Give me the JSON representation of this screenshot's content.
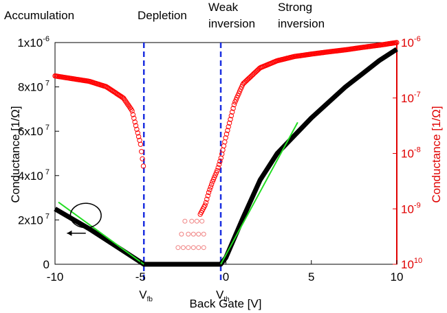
{
  "chart_data": {
    "type": "scatter",
    "regimes": [
      "Accumulation",
      "Depletion",
      "Weak inversion",
      "Strong inversion"
    ],
    "xlabel": "Back Gate [V]",
    "ylabel_left": "Conductance [1/Ω]",
    "ylabel_right": "Conductance [1/Ω]",
    "xlim": [
      -10,
      10
    ],
    "ylim_left": [
      0,
      1e-06
    ],
    "ylim_right": [
      1e-10,
      1e-06
    ],
    "right_scale": "log",
    "x_ticks": [
      "-10",
      "-5",
      "0",
      "5",
      "10"
    ],
    "y_left_ticks": [
      "0",
      "2x10",
      "4x10",
      "6x10",
      "8x10",
      "1x10"
    ],
    "y_left_tick_values": [
      0,
      2e-07,
      4e-07,
      6e-07,
      8e-07,
      1e-06
    ],
    "y_left_exponent": "7",
    "y_left_exponent_top": "6",
    "y_right_ticks": [
      {
        "base": "10",
        "exp": "10",
        "value": 1e-10
      },
      {
        "base": "10",
        "exp": "9",
        "value": 1e-09
      },
      {
        "base": "10",
        "exp": "8",
        "value": 1e-08
      },
      {
        "base": "10",
        "exp": "7",
        "value": 1e-07
      },
      {
        "base": "10",
        "exp": "6",
        "value": 1e-06
      }
    ],
    "vertical_lines": [
      {
        "x": -4.8,
        "label": "V",
        "sub": "fb"
      },
      {
        "x": -0.3,
        "label": "V",
        "sub": "th"
      }
    ],
    "linear_series": {
      "color": "#000000",
      "axis": "left",
      "x": [
        -10,
        -8,
        -6,
        -5,
        -4.8,
        -4,
        -3,
        -2,
        -1,
        -0.5,
        -0.3,
        0,
        1,
        2,
        3,
        4,
        5,
        6,
        7,
        8,
        9,
        10
      ],
      "y": [
        2.5e-07,
        1.6e-07,
        6e-08,
        1e-08,
        0,
        0,
        0,
        0,
        0,
        0,
        0,
        3e-08,
        2.1e-07,
        3.8e-07,
        5e-07,
        5.8e-07,
        6.6e-07,
        7.3e-07,
        8e-07,
        8.6e-07,
        9.2e-07,
        9.7e-07
      ]
    },
    "log_series": {
      "color": "#ff0000",
      "axis": "right",
      "x": [
        -10,
        -8,
        -7,
        -6,
        -5.5,
        -5,
        -4.8,
        -1.5,
        -1.2,
        -1,
        -0.8,
        -0.5,
        -0.3,
        0,
        0.5,
        1,
        2,
        3,
        4,
        5,
        6,
        7,
        8,
        9,
        10
      ],
      "y": [
        2.5e-07,
        2e-07,
        1.6e-07,
        1e-07,
        6e-08,
        1.5e-08,
        5e-09,
        8e-10,
        1.2e-09,
        2e-09,
        3e-09,
        5e-09,
        8e-09,
        2e-08,
        8e-08,
        1.8e-07,
        3.5e-07,
        4.7e-07,
        5.6e-07,
        6.2e-07,
        6.8e-07,
        7.4e-07,
        8.2e-07,
        9e-07,
        1e-06
      ]
    },
    "log_scatter_points": [
      {
        "x": -3.2,
        "y": 1e-10
      },
      {
        "x": -3.0,
        "y": 1e-10
      },
      {
        "x": -2.8,
        "y": 1e-10
      },
      {
        "x": -2.6,
        "y": 1e-10
      },
      {
        "x": -2.4,
        "y": 1e-10
      },
      {
        "x": -2.2,
        "y": 1e-10
      },
      {
        "x": -2.0,
        "y": 1e-10
      },
      {
        "x": -1.8,
        "y": 1e-10
      },
      {
        "x": -1.6,
        "y": 1e-10
      },
      {
        "x": -1.4,
        "y": 1e-10
      },
      {
        "x": -1.2,
        "y": 1e-10
      },
      {
        "x": -2.8,
        "y": 2e-10
      },
      {
        "x": -2.5,
        "y": 2e-10
      },
      {
        "x": -2.2,
        "y": 2e-10
      },
      {
        "x": -1.9,
        "y": 2e-10
      },
      {
        "x": -1.6,
        "y": 2e-10
      },
      {
        "x": -1.3,
        "y": 2e-10
      },
      {
        "x": -2.6,
        "y": 3.5e-10
      },
      {
        "x": -2.2,
        "y": 3.5e-10
      },
      {
        "x": -1.9,
        "y": 3.5e-10
      },
      {
        "x": -1.6,
        "y": 3.5e-10
      },
      {
        "x": -1.3,
        "y": 3.5e-10
      },
      {
        "x": -2.4,
        "y": 6e-10
      },
      {
        "x": -2.0,
        "y": 6e-10
      },
      {
        "x": -1.7,
        "y": 6e-10
      },
      {
        "x": -1.4,
        "y": 6e-10
      }
    ],
    "fit_lines": [
      {
        "color": "#22dd22",
        "x": [
          -9.8,
          -4.8
        ],
        "y": [
          2.8e-07,
          0
        ]
      },
      {
        "color": "#22dd22",
        "x": [
          -0.3,
          4.2
        ],
        "y": [
          0,
          6.4e-07
        ]
      }
    ],
    "annotations": [
      {
        "type": "ellipse",
        "cx": -8.2,
        "cy": 2.2e-07,
        "rx_data": 0.9,
        "ry_data": 5.5e-08
      },
      {
        "type": "arrow",
        "x0": -8.2,
        "y0": 1.4e-07,
        "x1": -9.3,
        "y1": 1.4e-07
      }
    ],
    "grid": false,
    "legend": "none"
  }
}
